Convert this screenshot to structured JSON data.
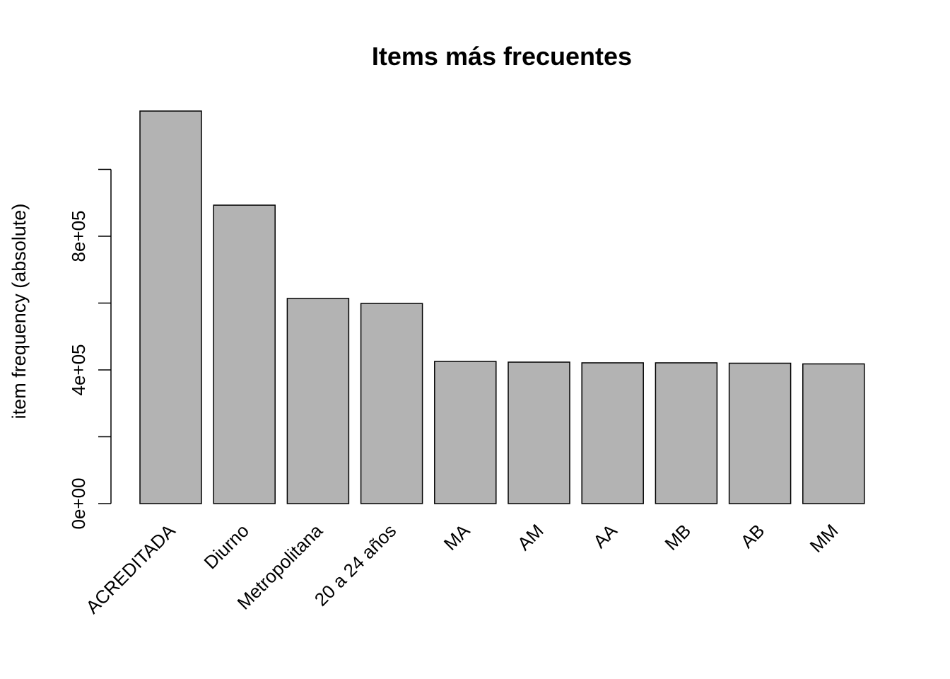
{
  "chart_data": {
    "type": "bar",
    "title": "Items más frecuentes",
    "y_label": "item frequency (absolute)",
    "categories": [
      "ACREDITADA",
      "Diurno",
      "Metropolitana",
      "20 a 24 años",
      "MA",
      "AM",
      "AA",
      "MB",
      "AB",
      "MM"
    ],
    "values": [
      1174600,
      893000,
      613800,
      598900,
      425400,
      423300,
      421200,
      421200,
      420100,
      418000
    ],
    "color": "#b3b3b3",
    "ylim": [
      0,
      1200000
    ],
    "yticks": [
      {
        "value": 0,
        "label": "0e+00"
      },
      {
        "value": 200000,
        "label": null
      },
      {
        "value": 400000,
        "label": "4e+05"
      },
      {
        "value": 600000,
        "label": null
      },
      {
        "value": 800000,
        "label": "8e+05"
      },
      {
        "value": 1000000,
        "label": null
      }
    ],
    "grid": false
  }
}
